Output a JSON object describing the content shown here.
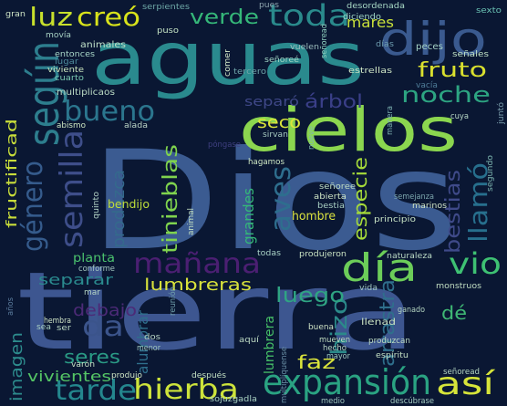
{
  "background": "#0a1733",
  "words": [
    {
      "text": "Dios",
      "color": "#3b5b91"
    },
    {
      "text": "tierra",
      "color": "#3d5690"
    },
    {
      "text": "aguas",
      "color": "#2a8a8e"
    },
    {
      "text": "cielos",
      "color": "#8bd64f"
    },
    {
      "text": "dijo",
      "color": "#3a5a8f"
    },
    {
      "text": "según",
      "color": "#2d7e8e"
    },
    {
      "text": "expansión",
      "color": "#2aa382"
    },
    {
      "text": "día",
      "color": "#6ccd59"
    },
    {
      "text": "así",
      "color": "#d6e43a"
    },
    {
      "text": "hierba",
      "color": "#cde33b"
    },
    {
      "text": "tarde",
      "color": "#24878e"
    },
    {
      "text": "mañana",
      "color": "#4b1f72"
    },
    {
      "text": "semilla",
      "color": "#3e4e8a"
    },
    {
      "text": "tinieblas",
      "color": "#7fd34e"
    },
    {
      "text": "bueno",
      "color": "#2b768e"
    },
    {
      "text": "toda",
      "color": "#2a8a8c"
    },
    {
      "text": "luz",
      "color": "#c8e02c"
    },
    {
      "text": "creó",
      "color": "#d8e31b"
    },
    {
      "text": "verde",
      "color": "#35b779"
    },
    {
      "text": "fruto",
      "color": "#d9e02e"
    },
    {
      "text": "noche",
      "color": "#2da582"
    },
    {
      "text": "árbol",
      "color": "#3a3f88"
    },
    {
      "text": "aves",
      "color": "#2e6e8e"
    },
    {
      "text": "llamó",
      "color": "#276f8d"
    },
    {
      "text": "bestias",
      "color": "#3f4a89"
    },
    {
      "text": "especie",
      "color": "#a5da3a"
    },
    {
      "text": "arrastra",
      "color": "#2f6f8c"
    },
    {
      "text": "hizo",
      "color": "#2b8a8a"
    },
    {
      "text": "vio",
      "color": "#3ec173"
    },
    {
      "text": "luego",
      "color": "#2fa483"
    },
    {
      "text": "lumbreras",
      "color": "#d8e23b"
    },
    {
      "text": "seco",
      "color": "#dae43a"
    },
    {
      "text": "mares",
      "color": "#c8e03a"
    },
    {
      "text": "género",
      "color": "#355b8c"
    },
    {
      "text": "separó",
      "color": "#3f4888"
    },
    {
      "text": "da",
      "color": "#3b548b"
    },
    {
      "text": "seres",
      "color": "#2a9a85"
    },
    {
      "text": "faz",
      "color": "#d8e23b"
    },
    {
      "text": "debajo",
      "color": "#4c2a77"
    },
    {
      "text": "separar",
      "color": "#2a8a8e"
    },
    {
      "text": "vivientes",
      "color": "#54c565"
    },
    {
      "text": "grandes",
      "color": "#34b779"
    },
    {
      "text": "produzca",
      "color": "#346a8c"
    },
    {
      "text": "alumbrar",
      "color": "#2e6f8c"
    },
    {
      "text": "lumbrera",
      "color": "#46c168"
    },
    {
      "text": "imagen",
      "color": "#2d8c8d"
    },
    {
      "text": "fructificad",
      "color": "#c8dd3a"
    },
    {
      "text": "dé",
      "color": "#3fb874"
    },
    {
      "text": "planta",
      "color": "#4ac16d"
    },
    {
      "text": "hombre",
      "color": "#dbe33f"
    },
    {
      "text": "bendijo",
      "color": "#bedd3a"
    },
    {
      "text": "animales",
      "color": "#bfe0c8"
    },
    {
      "text": "serpientes",
      "color": "#6fa9a8"
    },
    {
      "text": "pues",
      "color": "#8fa7b0"
    },
    {
      "text": "desordenada",
      "color": "#a7d8c5"
    },
    {
      "text": "sexto",
      "color": "#6ac2b4"
    },
    {
      "text": "movía",
      "color": "#a8d2c4"
    },
    {
      "text": "puso",
      "color": "#c5e3c4"
    },
    {
      "text": "diciendo",
      "color": "#a0d8c7"
    },
    {
      "text": "gran",
      "color": "#cde3c5"
    },
    {
      "text": "días",
      "color": "#6d9db0"
    },
    {
      "text": "entonces",
      "color": "#a9d7c8"
    },
    {
      "text": "lugar",
      "color": "#4e8b9c"
    },
    {
      "text": "viviente",
      "color": "#cde8bf"
    },
    {
      "text": "cuarto",
      "color": "#7ac8b1"
    },
    {
      "text": "comer",
      "color": "#d5e9c9"
    },
    {
      "text": "señoread",
      "color": "#8fd0be"
    },
    {
      "text": "vuelen",
      "color": "#9bbdbd"
    },
    {
      "text": "tercero",
      "color": "#6fa4a8"
    },
    {
      "text": "señoreé",
      "color": "#a2d5c4"
    },
    {
      "text": "peces",
      "color": "#a6d4c7"
    },
    {
      "text": "señales",
      "color": "#bfe1c5"
    },
    {
      "text": "estrellas",
      "color": "#cfe6c6"
    },
    {
      "text": "multiplicaos",
      "color": "#bad9c3"
    },
    {
      "text": "vacía",
      "color": "#4f7d99"
    },
    {
      "text": "abismo",
      "color": "#cde6c1"
    },
    {
      "text": "alada",
      "color": "#bcd5c6"
    },
    {
      "text": "manera",
      "color": "#7cb0b0"
    },
    {
      "text": "cuya",
      "color": "#b8d8c6"
    },
    {
      "text": "sirvan",
      "color": "#a6c9c0"
    },
    {
      "text": "juntó",
      "color": "#7a9eac"
    },
    {
      "text": "nueve",
      "color": "#7fb6ae"
    },
    {
      "text": "segundo",
      "color": "#7bb3ad"
    },
    {
      "text": "póngase",
      "color": "#3f3f80"
    },
    {
      "text": "hagamos",
      "color": "#cfe8c4"
    },
    {
      "text": "señoree",
      "color": "#bfdcc3"
    },
    {
      "text": "abierta",
      "color": "#cde3c4"
    },
    {
      "text": "bestia",
      "color": "#a8cfc2"
    },
    {
      "text": "marinos",
      "color": "#d1e5c6"
    },
    {
      "text": "quinto",
      "color": "#b3d3c6"
    },
    {
      "text": "animal",
      "color": "#c3dfc1"
    },
    {
      "text": "principio",
      "color": "#c6e1c4"
    },
    {
      "text": "semejanza",
      "color": "#7ca6ad"
    },
    {
      "text": "todas",
      "color": "#a9d2c6"
    },
    {
      "text": "produjeron",
      "color": "#c9e3c3"
    },
    {
      "text": "naturaleza",
      "color": "#bad9c4"
    },
    {
      "text": "conforme",
      "color": "#a3c7c0"
    },
    {
      "text": "mar",
      "color": "#b5d5c5"
    },
    {
      "text": "reunión",
      "color": "#6f9fab"
    },
    {
      "text": "vida",
      "color": "#a0c6bf"
    },
    {
      "text": "monstruos",
      "color": "#c2dfc3"
    },
    {
      "text": "llenad",
      "color": "#cbe3c3"
    },
    {
      "text": "ganado",
      "color": "#b5d6c2"
    },
    {
      "text": "años",
      "color": "#5a7b9c"
    },
    {
      "text": "hembra",
      "color": "#d0e4c6"
    },
    {
      "text": "sea",
      "color": "#a8cfc2"
    },
    {
      "text": "ser",
      "color": "#b9d7c2"
    },
    {
      "text": "dos",
      "color": "#b7d4c4"
    },
    {
      "text": "menor",
      "color": "#a0c5bd"
    },
    {
      "text": "aquí",
      "color": "#bcd9c3"
    },
    {
      "text": "multiplíquense",
      "color": "#6a8fa5"
    },
    {
      "text": "mueven",
      "color": "#c2dec2"
    },
    {
      "text": "hecho",
      "color": "#b9d6c2"
    },
    {
      "text": "mayor",
      "color": "#9cc6bd"
    },
    {
      "text": "buena",
      "color": "#cfe3c5"
    },
    {
      "text": "produzcan",
      "color": "#bedcc3"
    },
    {
      "text": "espíritu",
      "color": "#c4e0c3"
    },
    {
      "text": "varón",
      "color": "#c5e0c3"
    },
    {
      "text": "produjo",
      "color": "#cfe5c4"
    },
    {
      "text": "después",
      "color": "#c3e0c3"
    },
    {
      "text": "sojuzgadla",
      "color": "#a9d2c3"
    },
    {
      "text": "medio",
      "color": "#9fc5bd"
    },
    {
      "text": "descúbrase",
      "color": "#a5ccc1"
    },
    {
      "text": "señoread",
      "color": "#b5d6c2"
    }
  ]
}
